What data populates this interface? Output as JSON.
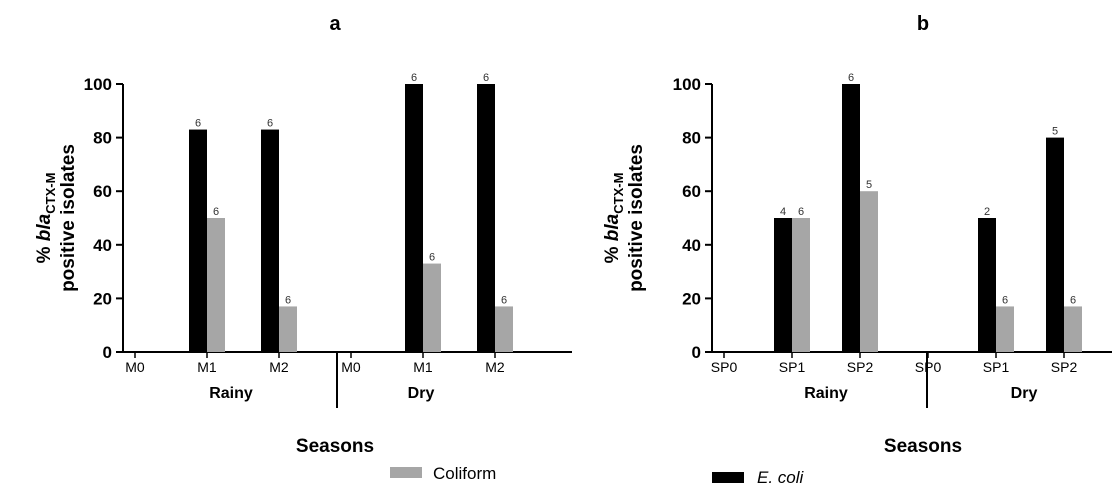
{
  "colors": {
    "ecoli": "#000000",
    "coliform": "#a6a6a6",
    "axis": "#000000"
  },
  "legend": [
    {
      "label": "Coliform",
      "color": "#a6a6a6",
      "italic": false
    },
    {
      "label": "E. coli",
      "color": "#000000",
      "italic": true
    }
  ],
  "chart_data": [
    {
      "type": "bar",
      "title": "a",
      "xlabel": "Seasons",
      "ylabel_line1_prefix": "% ",
      "ylabel_line1_italic": "bla",
      "ylabel_line1_sub": "CTX-M",
      "ylabel_line2": "positive isolates",
      "ylim": [
        0,
        100
      ],
      "yticks": [
        "0",
        "20",
        "40",
        "60",
        "80",
        "100"
      ],
      "groups": [
        "Rainy",
        "Dry"
      ],
      "categories": [
        "M0",
        "M1",
        "M2",
        "M0",
        "M1",
        "M2"
      ],
      "series": [
        {
          "name": "E. coli",
          "values": [
            0,
            83,
            83,
            0,
            100,
            100
          ],
          "labels": [
            "",
            "6",
            "6",
            "",
            "6",
            "6"
          ]
        },
        {
          "name": "Coliform",
          "values": [
            0,
            50,
            17,
            0,
            33,
            17
          ],
          "labels": [
            "",
            "6",
            "6",
            "",
            "6",
            "6"
          ]
        }
      ]
    },
    {
      "type": "bar",
      "title": "b",
      "xlabel": "Seasons",
      "ylabel_line1_prefix": "% ",
      "ylabel_line1_italic": "bla",
      "ylabel_line1_sub": "CTX-M",
      "ylabel_line2": "positive isolates",
      "ylim": [
        0,
        100
      ],
      "yticks": [
        "0",
        "20",
        "40",
        "60",
        "80",
        "100"
      ],
      "groups": [
        "Rainy",
        "Dry"
      ],
      "categories": [
        "SP0",
        "SP1",
        "SP2",
        "SP0",
        "SP1",
        "SP2"
      ],
      "series": [
        {
          "name": "E. coli",
          "values": [
            0,
            50,
            100,
            0,
            50,
            80
          ],
          "labels": [
            "",
            "4",
            "6",
            "",
            "2",
            "5"
          ]
        },
        {
          "name": "Coliform",
          "values": [
            0,
            50,
            60,
            0,
            17,
            17
          ],
          "labels": [
            "",
            "6",
            "5",
            "",
            "6",
            "6"
          ]
        }
      ]
    }
  ]
}
